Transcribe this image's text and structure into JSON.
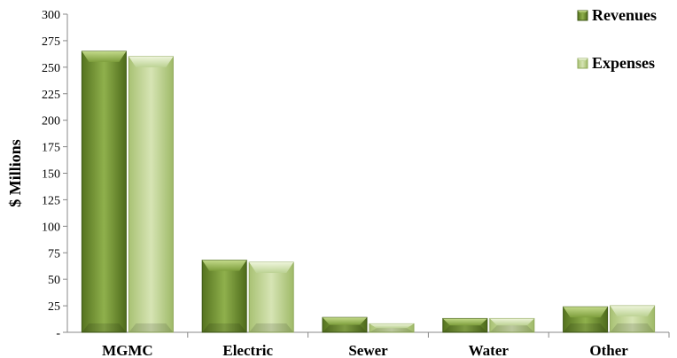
{
  "chart_data": {
    "type": "bar",
    "categories": [
      "MGMC",
      "Electric",
      "Sewer",
      "Water",
      "Other"
    ],
    "series": [
      {
        "name": "Revenues",
        "values": [
          265,
          68,
          14,
          13,
          24
        ],
        "color": "#7a9a3a"
      },
      {
        "name": "Expenses",
        "values": [
          260,
          66,
          8,
          13,
          25
        ],
        "color": "#c3d59a"
      }
    ],
    "ylabel": "$ Millions",
    "ylim": [
      0,
      300
    ],
    "yticks": [
      0,
      25,
      50,
      75,
      100,
      125,
      150,
      175,
      200,
      225,
      250,
      275,
      300
    ],
    "ytick_labels": [
      "-",
      "25",
      "50",
      "75",
      "100",
      "125",
      "150",
      "175",
      "200",
      "225",
      "250",
      "275",
      "300"
    ],
    "legend_position": "top-right",
    "grid": false
  }
}
